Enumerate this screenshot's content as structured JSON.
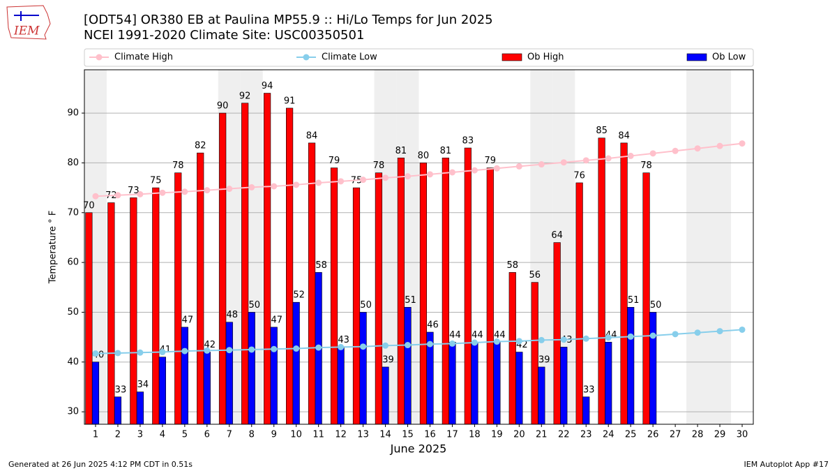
{
  "chart_data": {
    "type": "bar",
    "title": "[ODT54] OR380 EB at Paulina MP55.9  :: Hi/Lo Temps for Jun 2025",
    "subtitle": "NCEI 1991-2020 Climate Site: USC00350501",
    "x_label": "June 2025",
    "y_label": "Temperature ° F",
    "logo_text": "IEM",
    "footer_left": "Generated at 26 Jun 2025 4:12 PM CDT in 0.51s",
    "footer_right": "IEM Autoplot App #17",
    "x": [
      1,
      2,
      3,
      4,
      5,
      6,
      7,
      8,
      9,
      10,
      11,
      12,
      13,
      14,
      15,
      16,
      17,
      18,
      19,
      20,
      21,
      22,
      23,
      24,
      25,
      26,
      27,
      28,
      29,
      30
    ],
    "shaded_days": [
      1,
      7,
      8,
      14,
      15,
      21,
      22,
      28,
      29
    ],
    "xlim": [
      0.5,
      30.5
    ],
    "ylim": [
      27.5,
      98.7
    ],
    "yticks": [
      30,
      40,
      50,
      60,
      70,
      80,
      90
    ],
    "grid": true,
    "legend": "top",
    "series": [
      {
        "name": "Climate High",
        "type": "line",
        "color": "#ffc0cb",
        "values": [
          73.3,
          73.5,
          73.7,
          74.0,
          74.2,
          74.5,
          74.8,
          75.1,
          75.3,
          75.6,
          76.0,
          76.3,
          76.6,
          77.0,
          77.3,
          77.7,
          78.1,
          78.5,
          78.9,
          79.3,
          79.7,
          80.1,
          80.5,
          80.9,
          81.4,
          81.9,
          82.4,
          82.9,
          83.4,
          83.9
        ]
      },
      {
        "name": "Climate Low",
        "type": "line",
        "color": "#87ceeb",
        "values": [
          41.7,
          41.8,
          41.9,
          42.0,
          42.2,
          42.3,
          42.4,
          42.5,
          42.6,
          42.7,
          42.9,
          43.0,
          43.1,
          43.3,
          43.4,
          43.6,
          43.7,
          43.9,
          44.1,
          44.2,
          44.4,
          44.5,
          44.7,
          44.9,
          45.1,
          45.3,
          45.6,
          45.9,
          46.2,
          46.5
        ]
      },
      {
        "name": "Ob High",
        "type": "bar",
        "color": "#ff0000",
        "values": [
          70,
          72,
          73,
          75,
          78,
          82,
          90,
          92,
          94,
          91,
          84,
          79,
          75,
          78,
          81,
          80,
          81,
          83,
          79,
          58,
          56,
          64,
          76,
          85,
          84,
          78,
          null,
          null,
          null,
          null
        ]
      },
      {
        "name": "Ob Low",
        "type": "bar",
        "color": "#0000ff",
        "values": [
          40,
          33,
          34,
          41,
          47,
          42,
          48,
          50,
          47,
          52,
          58,
          43,
          50,
          39,
          51,
          46,
          44,
          44,
          44,
          42,
          39,
          43,
          33,
          44,
          51,
          50,
          null,
          null,
          null,
          null
        ]
      }
    ]
  }
}
